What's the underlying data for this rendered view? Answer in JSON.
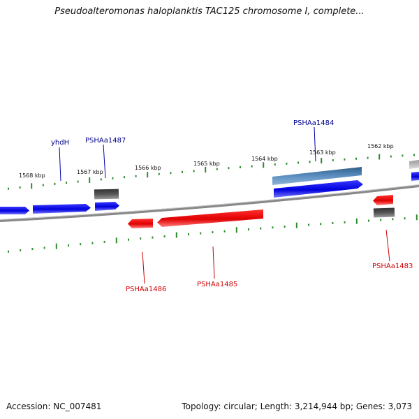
{
  "title": "Pseudoalteromonas haloplanktis TAC125 chromosome I, complete...",
  "footer": {
    "accession": "Accession: NC_007481",
    "summary": "Topology: circular; Length: 3,214,944 bp; Genes: 3,073"
  },
  "ticks": [
    "1568 kbp",
    "1567 kbp",
    "1566 kbp",
    "1565 kbp",
    "1564 kbp",
    "1563 kbp",
    "1562 kbp"
  ],
  "genes": {
    "forward": [
      "yhdH",
      "PSHAa1487",
      "PSHAa1484"
    ],
    "reverse": [
      "PSHAa1486",
      "PSHAa1485",
      "PSHAa1483"
    ]
  },
  "colors": {
    "forward_gene": "#0000ee",
    "reverse_gene": "#ee0000",
    "highlight_gene": "#4f86b8",
    "pseudo_gene": "#555555",
    "tick": "#2e8b2e",
    "backbone": "#888888",
    "forward_label": "#00008b",
    "reverse_label": "#cc0000"
  }
}
